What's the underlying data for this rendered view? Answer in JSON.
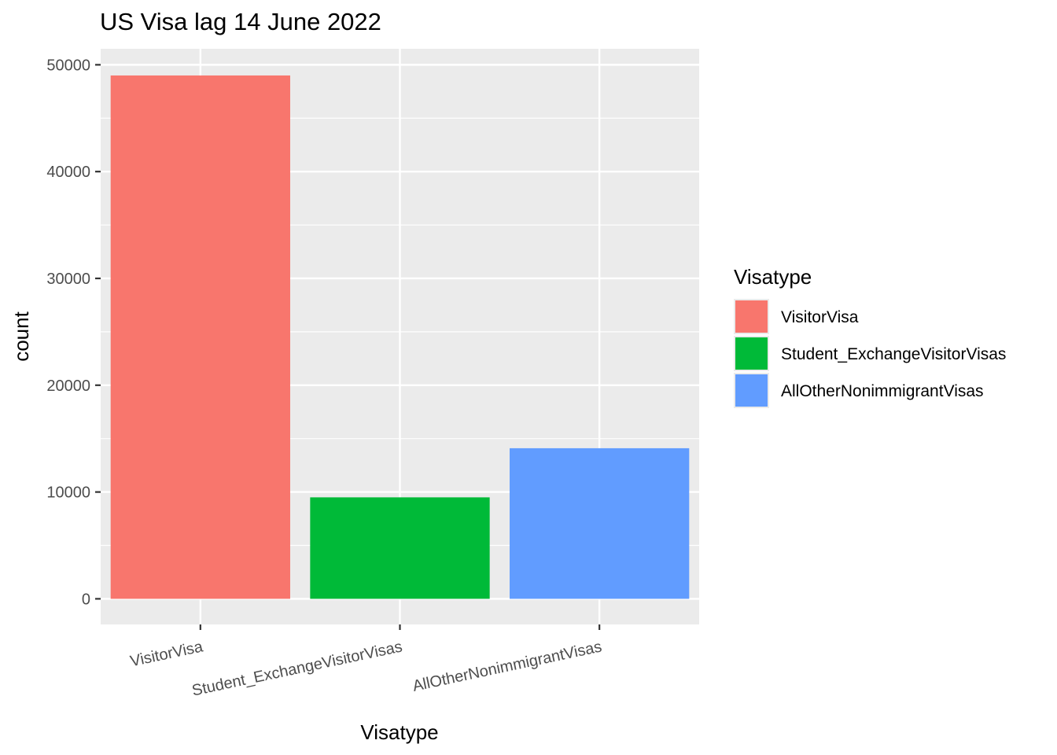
{
  "chart_data": {
    "type": "bar",
    "title": "US Visa lag 14 June 2022",
    "xlabel": "Visatype",
    "ylabel": "count",
    "categories": [
      "VisitorVisa",
      "Student_ExchangeVisitorVisas",
      "AllOtherNonimmigrantVisas"
    ],
    "values": [
      49000,
      9500,
      14100
    ],
    "colors": [
      "#F8766D",
      "#00BA38",
      "#619CFF"
    ],
    "ylim": [
      -2400,
      51500
    ],
    "yticks": [
      0,
      10000,
      20000,
      30000,
      40000,
      50000
    ],
    "ytick_labels": [
      "0",
      "10000",
      "20000",
      "30000",
      "40000",
      "50000"
    ],
    "grid": true,
    "legend": {
      "title": "Visatype",
      "position": "right",
      "entries": [
        "VisitorVisa",
        "Student_ExchangeVisitorVisas",
        "AllOtherNonimmigrantVisas"
      ]
    }
  }
}
